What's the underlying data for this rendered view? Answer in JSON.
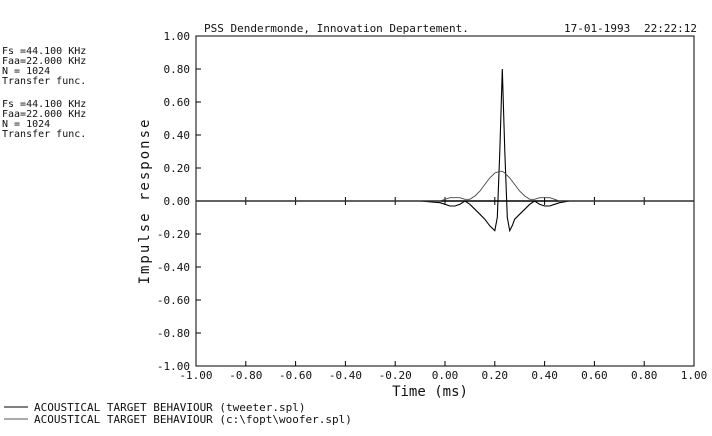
{
  "header": {
    "left": "PSS Dendermonde, Innovation Departement.",
    "date": "17-01-1993",
    "time": "22:22:12"
  },
  "side_info": [
    [
      "Fs =44.100 KHz",
      "Faa=22.000 KHz",
      "N  =  1024",
      "Transfer func."
    ],
    [
      "Fs =44.100 KHz",
      "Faa=22.000 KHz",
      "N  =  1024",
      "Transfer func."
    ]
  ],
  "chart_data": {
    "type": "line",
    "title": "",
    "xlabel": "Time (ms)",
    "ylabel": "Impulse response",
    "xlim": [
      -1.0,
      1.0
    ],
    "ylim": [
      -1.0,
      1.0
    ],
    "x_ticks": [
      -1.0,
      -0.8,
      -0.6,
      -0.4,
      -0.2,
      0.0,
      0.2,
      0.4,
      0.6,
      0.8,
      1.0
    ],
    "y_ticks": [
      1.0,
      0.8,
      0.6,
      0.4,
      0.2,
      0.0,
      -0.2,
      -0.4,
      -0.6,
      -0.8,
      -1.0
    ],
    "x_tick_labels": [
      "-1.00",
      "-0.80",
      "-0.60",
      "-0.40",
      "-0.20",
      "0.00",
      "0.20",
      "0.40",
      "0.60",
      "0.80",
      "1.00"
    ],
    "y_tick_labels": [
      "1.00",
      "0.80",
      "0.60",
      "0.40",
      "0.20",
      "0.00",
      "-0.20",
      "-0.40",
      "-0.60",
      "-0.80",
      "-1.00"
    ],
    "grid": false,
    "legend_position": "bottom-left",
    "series": [
      {
        "name": "ACOUSTICAL TARGET BEHAVIOUR (tweeter.spl)",
        "x": [
          -1.0,
          -0.3,
          -0.1,
          -0.02,
          0.0,
          0.02,
          0.04,
          0.06,
          0.08,
          0.1,
          0.12,
          0.14,
          0.16,
          0.18,
          0.2,
          0.21,
          0.22,
          0.23,
          0.24,
          0.25,
          0.26,
          0.27,
          0.28,
          0.3,
          0.32,
          0.34,
          0.36,
          0.38,
          0.4,
          0.42,
          0.44,
          0.46,
          0.5,
          0.6,
          1.0
        ],
        "y": [
          0.0,
          0.0,
          0.0,
          -0.01,
          -0.02,
          -0.03,
          -0.03,
          -0.02,
          0.0,
          -0.02,
          -0.05,
          -0.08,
          -0.11,
          -0.15,
          -0.18,
          -0.1,
          0.3,
          0.8,
          0.3,
          -0.1,
          -0.18,
          -0.15,
          -0.11,
          -0.08,
          -0.05,
          -0.02,
          0.0,
          -0.02,
          -0.03,
          -0.03,
          -0.02,
          -0.01,
          0.0,
          0.0,
          0.0
        ]
      },
      {
        "name": "ACOUSTICAL TARGET BEHAVIOUR (c:\\fopt\\woofer.spl)",
        "x": [
          -1.0,
          -0.3,
          -0.1,
          -0.02,
          0.0,
          0.02,
          0.04,
          0.06,
          0.08,
          0.1,
          0.12,
          0.14,
          0.16,
          0.18,
          0.2,
          0.22,
          0.23,
          0.24,
          0.26,
          0.28,
          0.3,
          0.32,
          0.34,
          0.36,
          0.38,
          0.4,
          0.42,
          0.44,
          0.46,
          0.5,
          0.6,
          1.0
        ],
        "y": [
          0.0,
          0.0,
          0.0,
          0.0,
          0.01,
          0.02,
          0.02,
          0.02,
          0.01,
          0.01,
          0.03,
          0.06,
          0.1,
          0.14,
          0.17,
          0.18,
          0.18,
          0.17,
          0.14,
          0.1,
          0.06,
          0.03,
          0.01,
          0.01,
          0.02,
          0.02,
          0.02,
          0.01,
          0.0,
          0.0,
          0.0,
          0.0
        ]
      }
    ]
  }
}
